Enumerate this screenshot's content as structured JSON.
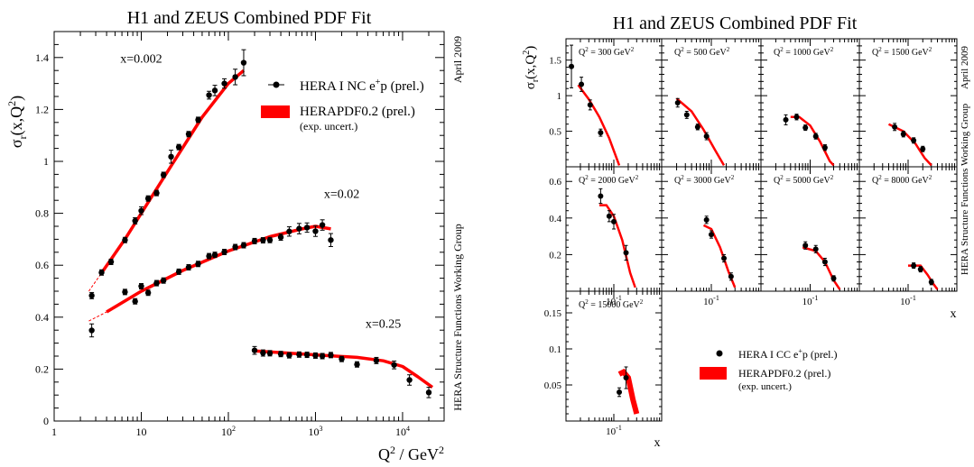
{
  "figure": {
    "left_title": "H1 and ZEUS Combined PDF Fit",
    "right_title": "H1 and ZEUS Combined PDF Fit",
    "side_date": "April 2009",
    "side_group": "HERA Structure Functions Working Group"
  },
  "colors": {
    "fit": "#ff0000",
    "data": "#000000"
  },
  "chart_data": [
    {
      "type": "scatter",
      "title": "H1 and ZEUS Combined PDF Fit",
      "xlabel_main": "Q",
      "xlabel_sup": "2",
      "xlabel_rest": " / GeV",
      "xlabel_sup2": "2",
      "ylabel_main": "σ",
      "ylabel_sub": "r",
      "ylabel_rest": "(x,Q",
      "ylabel_sup": "2",
      "ylabel_end": ")",
      "x_scale": "log",
      "xlim": [
        1,
        30000
      ],
      "ylim": [
        0,
        1.5
      ],
      "x_ticks": [
        {
          "v": 1,
          "label": "1"
        },
        {
          "v": 10,
          "label": "10"
        },
        {
          "v": 100,
          "label": "10",
          "sup": "2"
        },
        {
          "v": 1000,
          "label": "10",
          "sup": "3"
        },
        {
          "v": 10000,
          "label": "10",
          "sup": "4"
        }
      ],
      "y_ticks": [
        {
          "v": 0,
          "label": "0"
        },
        {
          "v": 0.2,
          "label": "0.2"
        },
        {
          "v": 0.4,
          "label": "0.4"
        },
        {
          "v": 0.6,
          "label": "0.6"
        },
        {
          "v": 0.8,
          "label": "0.8"
        },
        {
          "v": 1,
          "label": "1"
        },
        {
          "v": 1.2,
          "label": "1.2"
        },
        {
          "v": 1.4,
          "label": "1.4"
        }
      ],
      "legend": {
        "placement": "top-right",
        "data_label": "HERA I NC e",
        "data_sup": "+",
        "data_rest": "p (prel.)",
        "fit_label": "HERAPDF0.2 (prel.)",
        "fit_sub": "(exp. uncert.)"
      },
      "series": [
        {
          "name": "x=0.002",
          "label_at": [
            10,
            1.38
          ],
          "points": [
            [
              2.7,
              0.483,
              0.012
            ],
            [
              3.5,
              0.572,
              0.007
            ],
            [
              4.5,
              0.613,
              0.008
            ],
            [
              6.5,
              0.697,
              0.007
            ],
            [
              8.5,
              0.771,
              0.012
            ],
            [
              10,
              0.81,
              0.015
            ],
            [
              12,
              0.857,
              0.01
            ],
            [
              15,
              0.878,
              0.008
            ],
            [
              18,
              0.948,
              0.008
            ],
            [
              22,
              1.018,
              0.025
            ],
            [
              27,
              1.055,
              0.01
            ],
            [
              35,
              1.105,
              0.01
            ],
            [
              45,
              1.16,
              0.01
            ],
            [
              60,
              1.255,
              0.015
            ],
            [
              70,
              1.273,
              0.02
            ],
            [
              90,
              1.3,
              0.018
            ],
            [
              120,
              1.325,
              0.03
            ],
            [
              150,
              1.38,
              0.05
            ]
          ],
          "fit": [
            [
              3.5,
              0.57
            ],
            [
              6.5,
              0.7
            ],
            [
              10,
              0.8
            ],
            [
              20,
              0.96
            ],
            [
              50,
              1.17
            ],
            [
              100,
              1.3
            ],
            [
              150,
              1.35
            ]
          ],
          "fit_extrap": [
            [
              2.5,
              0.5
            ],
            [
              3.5,
              0.57
            ]
          ]
        },
        {
          "name": "x=0.02",
          "label_at": [
            2000,
            0.86
          ],
          "points": [
            [
              2.7,
              0.349,
              0.025
            ],
            [
              6.5,
              0.497,
              0.01
            ],
            [
              8.5,
              0.461,
              0.01
            ],
            [
              10,
              0.519,
              0.008
            ],
            [
              12,
              0.494,
              0.01
            ],
            [
              15,
              0.531,
              0.008
            ],
            [
              18,
              0.541,
              0.007
            ],
            [
              27,
              0.575,
              0.006
            ],
            [
              35,
              0.592,
              0.005
            ],
            [
              45,
              0.605,
              0.005
            ],
            [
              60,
              0.635,
              0.005
            ],
            [
              70,
              0.64,
              0.006
            ],
            [
              90,
              0.651,
              0.006
            ],
            [
              120,
              0.67,
              0.006
            ],
            [
              150,
              0.677,
              0.006
            ],
            [
              200,
              0.693,
              0.006
            ],
            [
              250,
              0.696,
              0.008
            ],
            [
              300,
              0.697,
              0.01
            ],
            [
              400,
              0.708,
              0.012
            ],
            [
              500,
              0.73,
              0.018
            ],
            [
              650,
              0.741,
              0.02
            ],
            [
              800,
              0.745,
              0.018
            ],
            [
              1000,
              0.731,
              0.02
            ],
            [
              1200,
              0.755,
              0.02
            ],
            [
              1500,
              0.697,
              0.025
            ]
          ],
          "fit": [
            [
              4,
              0.42
            ],
            [
              10,
              0.5
            ],
            [
              30,
              0.58
            ],
            [
              100,
              0.655
            ],
            [
              300,
              0.71
            ],
            [
              700,
              0.74
            ],
            [
              1000,
              0.75
            ],
            [
              1500,
              0.74
            ]
          ],
          "fit_extrap": [
            [
              2.5,
              0.385
            ],
            [
              4,
              0.42
            ]
          ]
        },
        {
          "name": "x=0.25",
          "label_at": [
            6000,
            0.36
          ],
          "points": [
            [
              200,
              0.272,
              0.015
            ],
            [
              250,
              0.262,
              0.012
            ],
            [
              300,
              0.261,
              0.01
            ],
            [
              400,
              0.258,
              0.01
            ],
            [
              500,
              0.253,
              0.008
            ],
            [
              650,
              0.256,
              0.008
            ],
            [
              800,
              0.255,
              0.008
            ],
            [
              1000,
              0.252,
              0.008
            ],
            [
              1200,
              0.25,
              0.007
            ],
            [
              1500,
              0.254,
              0.007
            ],
            [
              2000,
              0.239,
              0.008
            ],
            [
              3000,
              0.218,
              0.01
            ],
            [
              5000,
              0.233,
              0.012
            ],
            [
              8000,
              0.216,
              0.015
            ],
            [
              12000,
              0.158,
              0.02
            ],
            [
              20000,
              0.11,
              0.02
            ]
          ],
          "fit": [
            [
              200,
              0.27
            ],
            [
              1000,
              0.255
            ],
            [
              3000,
              0.245
            ],
            [
              6000,
              0.232
            ],
            [
              10000,
              0.21
            ],
            [
              15000,
              0.17
            ],
            [
              22000,
              0.13
            ]
          ]
        }
      ]
    },
    {
      "type": "scatter",
      "title": "H1 and ZEUS Combined PDF Fit",
      "xlabel": "x",
      "ylabel_main": "σ",
      "ylabel_sub": "r",
      "ylabel_rest": "(x,Q",
      "ylabel_sup": "2",
      "ylabel_end": ")",
      "x_scale": "log",
      "xlim": [
        0.01,
        1
      ],
      "x_tick_label": "10",
      "x_tick_sup": "-1",
      "legend": {
        "placement": "bottom-right",
        "data_label": "HERA I CC e",
        "data_sup": "+",
        "data_rest": "p (prel.)",
        "fit_label": "HERAPDF0.2 (prel.)",
        "fit_sub": "(exp. uncert.)"
      },
      "rows": [
        {
          "ylim": [
            0,
            1.8
          ],
          "y_ticks": [
            {
              "v": 0.5,
              "label": "0.5"
            },
            {
              "v": 1,
              "label": "1"
            },
            {
              "v": 1.5,
              "label": "1.5"
            }
          ]
        },
        {
          "ylim": [
            0,
            0.68
          ],
          "y_ticks": [
            {
              "v": 0.2,
              "label": "0.2"
            },
            {
              "v": 0.4,
              "label": "0.4"
            },
            {
              "v": 0.6,
              "label": "0.6"
            }
          ]
        },
        {
          "ylim": [
            0,
            0.18
          ],
          "y_ticks": [
            {
              "v": 0.05,
              "label": "0.05"
            },
            {
              "v": 0.1,
              "label": "0.1"
            },
            {
              "v": 0.15,
              "label": "0.15"
            }
          ]
        }
      ],
      "panels": [
        {
          "row": 0,
          "col": 0,
          "q2": "300",
          "points": [
            [
              0.013,
              1.41,
              0.3
            ],
            [
              0.021,
              1.16,
              0.1
            ],
            [
              0.032,
              0.87,
              0.07
            ],
            [
              0.053,
              0.48,
              0.05
            ]
          ],
          "fit": [
            [
              0.018,
              1.15
            ],
            [
              0.03,
              0.95
            ],
            [
              0.05,
              0.7
            ],
            [
              0.08,
              0.4
            ],
            [
              0.13,
              0.02
            ]
          ]
        },
        {
          "row": 0,
          "col": 1,
          "q2": "500",
          "points": [
            [
              0.021,
              0.9,
              0.06
            ],
            [
              0.032,
              0.73,
              0.05
            ],
            [
              0.053,
              0.56,
              0.04
            ],
            [
              0.08,
              0.43,
              0.05
            ]
          ],
          "fit": [
            [
              0.02,
              0.96
            ],
            [
              0.04,
              0.78
            ],
            [
              0.07,
              0.52
            ],
            [
              0.12,
              0.23
            ],
            [
              0.18,
              0.02
            ]
          ]
        },
        {
          "row": 0,
          "col": 2,
          "q2": "1000",
          "points": [
            [
              0.032,
              0.66,
              0.07
            ],
            [
              0.053,
              0.7,
              0.04
            ],
            [
              0.08,
              0.55,
              0.03
            ],
            [
              0.13,
              0.43,
              0.04
            ],
            [
              0.2,
              0.27,
              0.04
            ]
          ],
          "fit": [
            [
              0.04,
              0.7
            ],
            [
              0.06,
              0.7
            ],
            [
              0.1,
              0.58
            ],
            [
              0.16,
              0.35
            ],
            [
              0.25,
              0.08
            ],
            [
              0.3,
              0.02
            ]
          ]
        },
        {
          "row": 0,
          "col": 3,
          "q2": "1500",
          "points": [
            [
              0.053,
              0.56,
              0.05
            ],
            [
              0.08,
              0.46,
              0.04
            ],
            [
              0.13,
              0.37,
              0.03
            ],
            [
              0.2,
              0.25,
              0.03
            ]
          ],
          "fit": [
            [
              0.04,
              0.6
            ],
            [
              0.08,
              0.5
            ],
            [
              0.14,
              0.33
            ],
            [
              0.22,
              0.12
            ],
            [
              0.3,
              0.02
            ]
          ]
        },
        {
          "row": 1,
          "col": 0,
          "q2": "2000",
          "points": [
            [
              0.053,
              0.52,
              0.04
            ],
            [
              0.08,
              0.41,
              0.03
            ],
            [
              0.1,
              0.38,
              0.04
            ],
            [
              0.18,
              0.21,
              0.04
            ]
          ],
          "fit": [
            [
              0.05,
              0.47
            ],
            [
              0.07,
              0.47
            ],
            [
              0.1,
              0.41
            ],
            [
              0.15,
              0.28
            ],
            [
              0.22,
              0.1
            ],
            [
              0.28,
              0.02
            ]
          ]
        },
        {
          "row": 1,
          "col": 1,
          "q2": "3000",
          "points": [
            [
              0.08,
              0.39,
              0.02
            ],
            [
              0.1,
              0.31,
              0.02
            ],
            [
              0.18,
              0.18,
              0.02
            ],
            [
              0.25,
              0.08,
              0.02
            ]
          ],
          "fit": [
            [
              0.07,
              0.36
            ],
            [
              0.1,
              0.34
            ],
            [
              0.15,
              0.24
            ],
            [
              0.22,
              0.11
            ],
            [
              0.3,
              0.02
            ]
          ]
        },
        {
          "row": 1,
          "col": 2,
          "q2": "5000",
          "points": [
            [
              0.08,
              0.25,
              0.02
            ],
            [
              0.13,
              0.23,
              0.02
            ],
            [
              0.2,
              0.16,
              0.02
            ],
            [
              0.3,
              0.07,
              0.01
            ]
          ],
          "fit": [
            [
              0.07,
              0.24
            ],
            [
              0.13,
              0.22
            ],
            [
              0.2,
              0.16
            ],
            [
              0.3,
              0.06
            ],
            [
              0.4,
              0.01
            ]
          ]
        },
        {
          "row": 1,
          "col": 3,
          "q2": "8000",
          "points": [
            [
              0.13,
              0.14,
              0.01
            ],
            [
              0.18,
              0.12,
              0.01
            ],
            [
              0.3,
              0.05,
              0.01
            ]
          ],
          "fit": [
            [
              0.1,
              0.14
            ],
            [
              0.18,
              0.14
            ],
            [
              0.25,
              0.09
            ],
            [
              0.33,
              0.04
            ],
            [
              0.4,
              0.01
            ]
          ]
        },
        {
          "row": 2,
          "col": 0,
          "q2": "15000",
          "points": [
            [
              0.13,
              0.04,
              0.006
            ],
            [
              0.18,
              0.06,
              0.015
            ]
          ],
          "fit": [
            [
              0.13,
              0.065
            ],
            [
              0.16,
              0.068
            ],
            [
              0.2,
              0.06
            ],
            [
              0.25,
              0.03
            ],
            [
              0.3,
              0.01
            ]
          ]
        }
      ]
    }
  ]
}
